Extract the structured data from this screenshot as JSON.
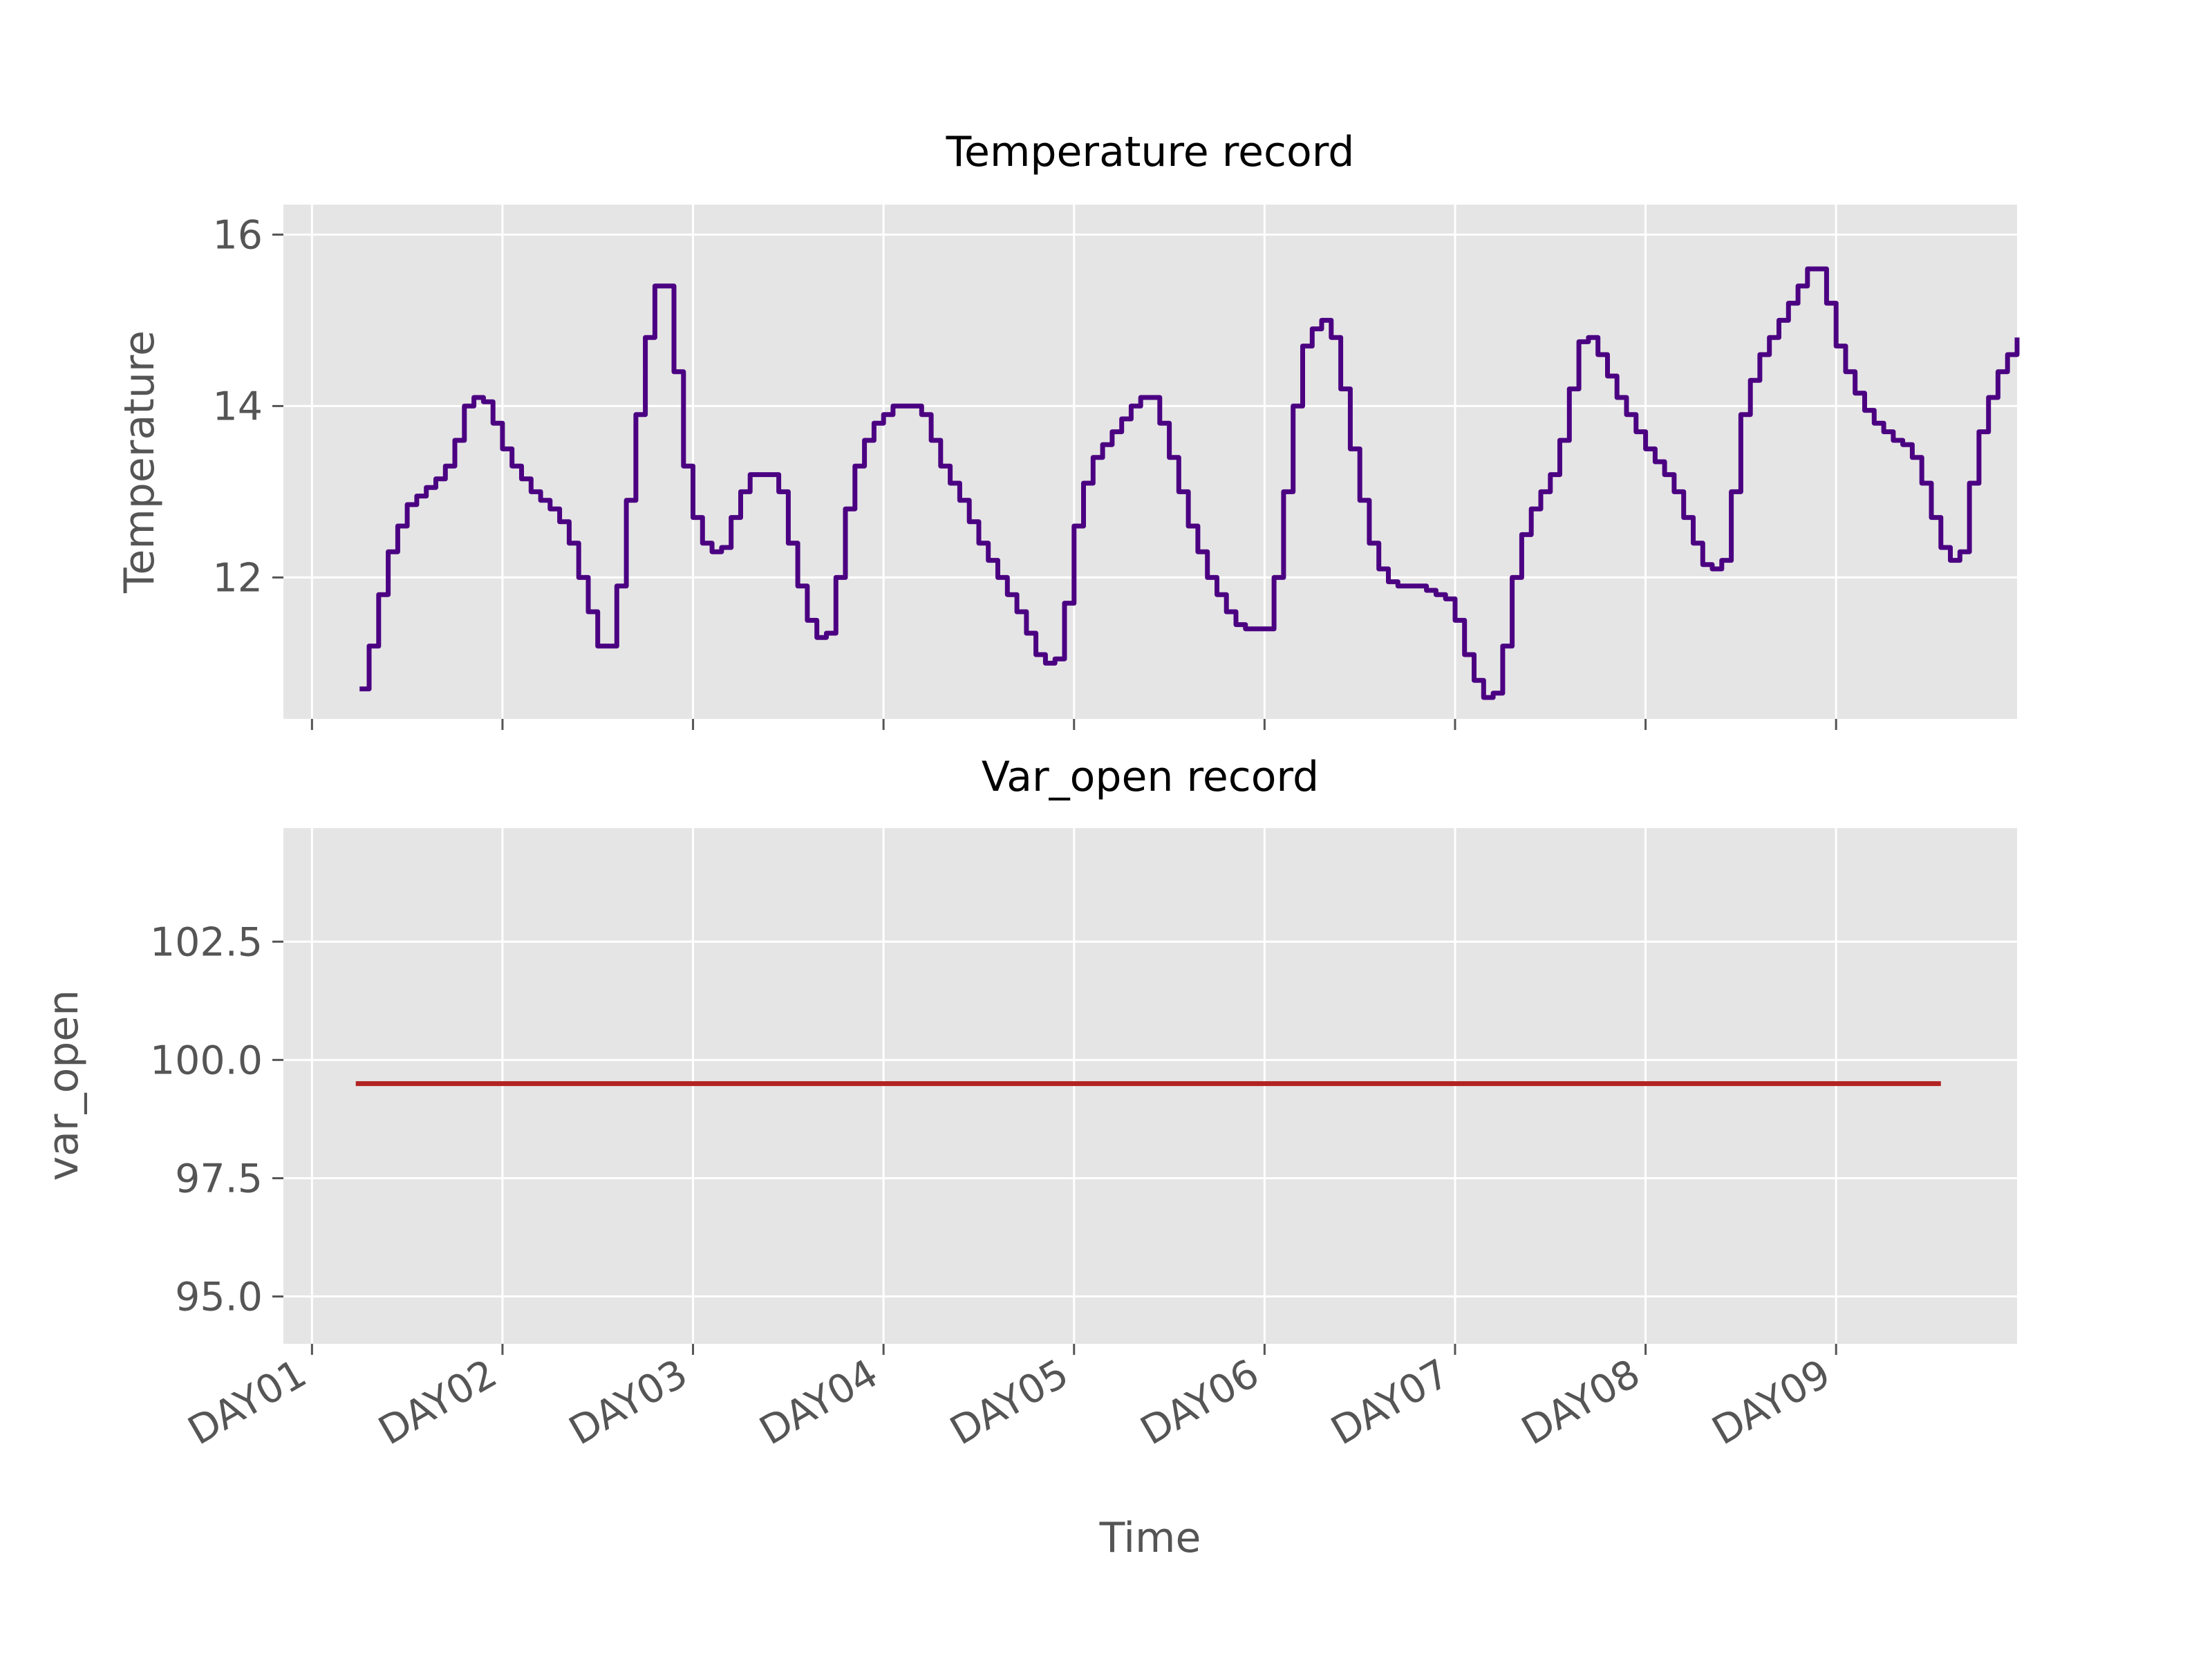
{
  "figure": {
    "x_label": "Time"
  },
  "chart_data": [
    {
      "type": "line",
      "title": "Temperature record",
      "xlabel": "",
      "ylabel": "Temperature",
      "x_ticks": [
        "DAY01",
        "DAY02",
        "DAY03",
        "DAY04",
        "DAY05",
        "DAY06",
        "DAY07",
        "DAY08",
        "DAY09"
      ],
      "xlim": [
        -0.15,
        8.95
      ],
      "ylim": [
        10.35,
        16.35
      ],
      "y_ticks": [
        "12",
        "14",
        "16"
      ],
      "y_tick_values": [
        12,
        14,
        16
      ],
      "grid": true,
      "line_style": "steps",
      "series": [
        {
          "color": "#4b0082",
          "points": [
            [
              0.25,
              10.7
            ],
            [
              0.3,
              11.2
            ],
            [
              0.35,
              11.8
            ],
            [
              0.4,
              12.3
            ],
            [
              0.45,
              12.6
            ],
            [
              0.5,
              12.85
            ],
            [
              0.55,
              12.95
            ],
            [
              0.6,
              13.05
            ],
            [
              0.65,
              13.15
            ],
            [
              0.7,
              13.3
            ],
            [
              0.75,
              13.6
            ],
            [
              0.8,
              14.0
            ],
            [
              0.85,
              14.1
            ],
            [
              0.9,
              14.05
            ],
            [
              0.95,
              13.8
            ],
            [
              1.0,
              13.5
            ],
            [
              1.05,
              13.3
            ],
            [
              1.1,
              13.15
            ],
            [
              1.15,
              13.0
            ],
            [
              1.2,
              12.9
            ],
            [
              1.25,
              12.8
            ],
            [
              1.3,
              12.65
            ],
            [
              1.35,
              12.4
            ],
            [
              1.4,
              12.0
            ],
            [
              1.45,
              11.6
            ],
            [
              1.5,
              11.2
            ],
            [
              1.55,
              11.2
            ],
            [
              1.6,
              11.9
            ],
            [
              1.65,
              12.9
            ],
            [
              1.7,
              13.9
            ],
            [
              1.75,
              14.8
            ],
            [
              1.8,
              15.4
            ],
            [
              1.85,
              15.4
            ],
            [
              1.9,
              14.4
            ],
            [
              1.95,
              13.3
            ],
            [
              2.0,
              12.7
            ],
            [
              2.05,
              12.4
            ],
            [
              2.1,
              12.3
            ],
            [
              2.15,
              12.35
            ],
            [
              2.2,
              12.7
            ],
            [
              2.25,
              13.0
            ],
            [
              2.3,
              13.2
            ],
            [
              2.35,
              13.2
            ],
            [
              2.4,
              13.2
            ],
            [
              2.45,
              13.0
            ],
            [
              2.5,
              12.4
            ],
            [
              2.55,
              11.9
            ],
            [
              2.6,
              11.5
            ],
            [
              2.65,
              11.3
            ],
            [
              2.7,
              11.35
            ],
            [
              2.75,
              12.0
            ],
            [
              2.8,
              12.8
            ],
            [
              2.85,
              13.3
            ],
            [
              2.9,
              13.6
            ],
            [
              2.95,
              13.8
            ],
            [
              3.0,
              13.9
            ],
            [
              3.05,
              14.0
            ],
            [
              3.1,
              14.0
            ],
            [
              3.15,
              14.0
            ],
            [
              3.2,
              13.9
            ],
            [
              3.25,
              13.6
            ],
            [
              3.3,
              13.3
            ],
            [
              3.35,
              13.1
            ],
            [
              3.4,
              12.9
            ],
            [
              3.45,
              12.65
            ],
            [
              3.5,
              12.4
            ],
            [
              3.55,
              12.2
            ],
            [
              3.6,
              12.0
            ],
            [
              3.65,
              11.8
            ],
            [
              3.7,
              11.6
            ],
            [
              3.75,
              11.35
            ],
            [
              3.8,
              11.1
            ],
            [
              3.85,
              11.0
            ],
            [
              3.9,
              11.05
            ],
            [
              3.95,
              11.7
            ],
            [
              4.0,
              12.6
            ],
            [
              4.05,
              13.1
            ],
            [
              4.1,
              13.4
            ],
            [
              4.15,
              13.55
            ],
            [
              4.2,
              13.7
            ],
            [
              4.25,
              13.85
            ],
            [
              4.3,
              14.0
            ],
            [
              4.35,
              14.1
            ],
            [
              4.4,
              14.1
            ],
            [
              4.45,
              13.8
            ],
            [
              4.5,
              13.4
            ],
            [
              4.55,
              13.0
            ],
            [
              4.6,
              12.6
            ],
            [
              4.65,
              12.3
            ],
            [
              4.7,
              12.0
            ],
            [
              4.75,
              11.8
            ],
            [
              4.8,
              11.6
            ],
            [
              4.85,
              11.45
            ],
            [
              4.9,
              11.4
            ],
            [
              4.95,
              11.4
            ],
            [
              5.0,
              11.4
            ],
            [
              5.05,
              12.0
            ],
            [
              5.1,
              13.0
            ],
            [
              5.15,
              14.0
            ],
            [
              5.2,
              14.7
            ],
            [
              5.25,
              14.9
            ],
            [
              5.3,
              15.0
            ],
            [
              5.35,
              14.8
            ],
            [
              5.4,
              14.2
            ],
            [
              5.45,
              13.5
            ],
            [
              5.5,
              12.9
            ],
            [
              5.55,
              12.4
            ],
            [
              5.6,
              12.1
            ],
            [
              5.65,
              11.95
            ],
            [
              5.7,
              11.9
            ],
            [
              5.75,
              11.9
            ],
            [
              5.8,
              11.9
            ],
            [
              5.85,
              11.85
            ],
            [
              5.9,
              11.8
            ],
            [
              5.95,
              11.75
            ],
            [
              6.0,
              11.5
            ],
            [
              6.05,
              11.1
            ],
            [
              6.1,
              10.8
            ],
            [
              6.15,
              10.6
            ],
            [
              6.2,
              10.65
            ],
            [
              6.25,
              11.2
            ],
            [
              6.3,
              12.0
            ],
            [
              6.35,
              12.5
            ],
            [
              6.4,
              12.8
            ],
            [
              6.45,
              13.0
            ],
            [
              6.5,
              13.2
            ],
            [
              6.55,
              13.6
            ],
            [
              6.6,
              14.2
            ],
            [
              6.65,
              14.75
            ],
            [
              6.7,
              14.8
            ],
            [
              6.75,
              14.6
            ],
            [
              6.8,
              14.35
            ],
            [
              6.85,
              14.1
            ],
            [
              6.9,
              13.9
            ],
            [
              6.95,
              13.7
            ],
            [
              7.0,
              13.5
            ],
            [
              7.05,
              13.35
            ],
            [
              7.1,
              13.2
            ],
            [
              7.15,
              13.0
            ],
            [
              7.2,
              12.7
            ],
            [
              7.25,
              12.4
            ],
            [
              7.3,
              12.15
            ],
            [
              7.35,
              12.1
            ],
            [
              7.4,
              12.2
            ],
            [
              7.45,
              13.0
            ],
            [
              7.5,
              13.9
            ],
            [
              7.55,
              14.3
            ],
            [
              7.6,
              14.6
            ],
            [
              7.65,
              14.8
            ],
            [
              7.7,
              15.0
            ],
            [
              7.75,
              15.2
            ],
            [
              7.8,
              15.4
            ],
            [
              7.85,
              15.6
            ],
            [
              7.9,
              15.6
            ],
            [
              7.95,
              15.2
            ],
            [
              8.0,
              14.7
            ],
            [
              8.05,
              14.4
            ],
            [
              8.1,
              14.15
            ],
            [
              8.15,
              13.95
            ],
            [
              8.2,
              13.8
            ],
            [
              8.25,
              13.7
            ],
            [
              8.3,
              13.6
            ],
            [
              8.35,
              13.55
            ],
            [
              8.4,
              13.4
            ],
            [
              8.45,
              13.1
            ],
            [
              8.5,
              12.7
            ],
            [
              8.55,
              12.35
            ],
            [
              8.6,
              12.2
            ],
            [
              8.65,
              12.3
            ],
            [
              8.7,
              13.1
            ],
            [
              8.75,
              13.7
            ],
            [
              8.8,
              14.1
            ],
            [
              8.85,
              14.4
            ],
            [
              8.9,
              14.6
            ],
            [
              8.95,
              14.8
            ]
          ]
        }
      ]
    },
    {
      "type": "line",
      "title": "Var_open record",
      "xlabel": "Time",
      "ylabel": "var_open",
      "x_ticks": [
        "DAY01",
        "DAY02",
        "DAY03",
        "DAY04",
        "DAY05",
        "DAY06",
        "DAY07",
        "DAY08",
        "DAY09"
      ],
      "xlim": [
        -0.15,
        8.95
      ],
      "ylim": [
        94.0,
        104.9
      ],
      "y_ticks": [
        "95.0",
        "97.5",
        "100.0",
        "102.5"
      ],
      "y_tick_values": [
        95.0,
        97.5,
        100.0,
        102.5
      ],
      "grid": true,
      "series": [
        {
          "color": "#b22222",
          "points": [
            [
              0.23,
              99.5
            ],
            [
              8.55,
              99.5
            ]
          ]
        }
      ]
    }
  ]
}
